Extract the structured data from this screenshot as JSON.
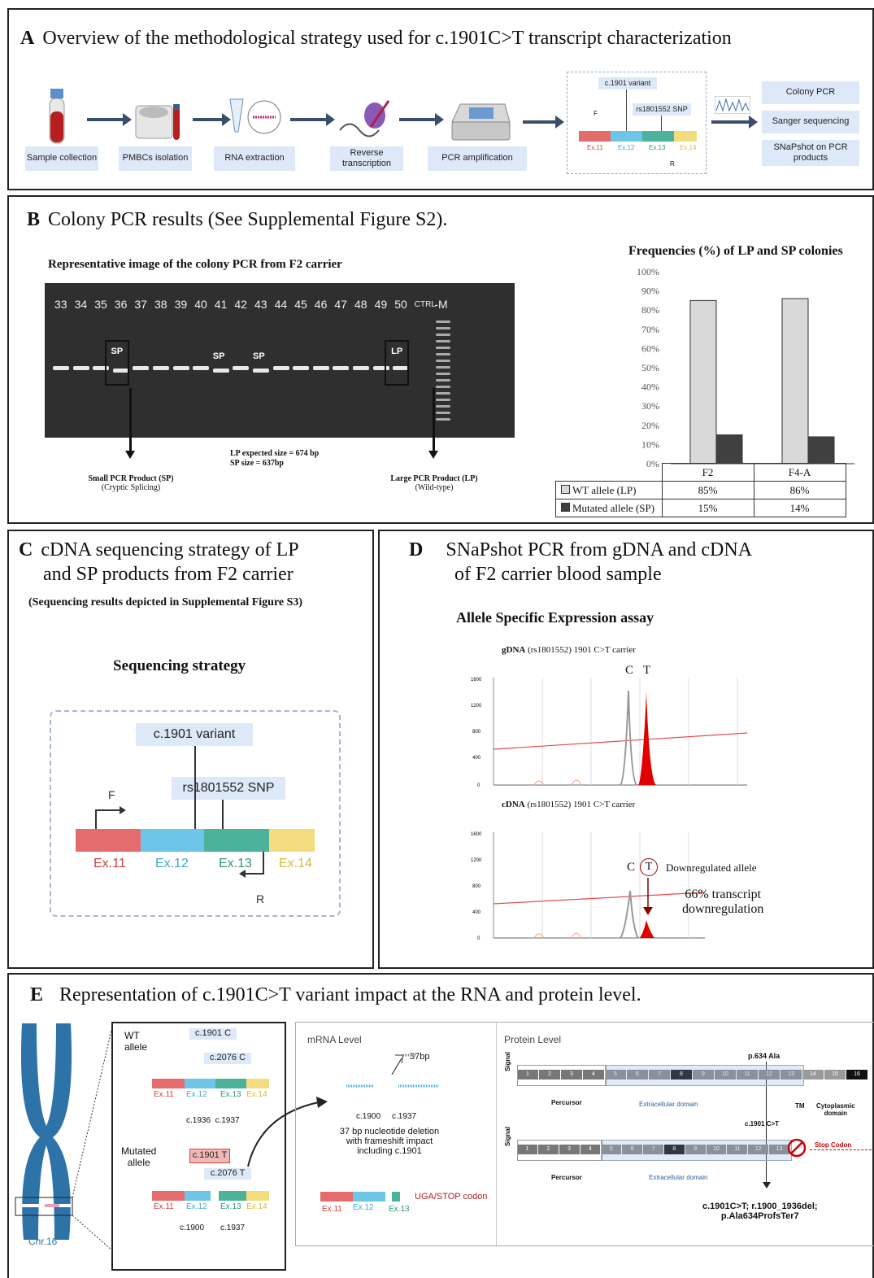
{
  "panelA": {
    "letter": "A",
    "title": "Overview of the methodological strategy used for c.1901C>T transcript characterization",
    "steps": [
      "Sample collection",
      "PMBCs isolation",
      "RNA extraction",
      "Reverse transcription",
      "PCR amplification"
    ],
    "diagram": {
      "variant": "c.1901 variant",
      "snp": "rs1801552 SNP",
      "F": "F",
      "R": "R",
      "exons": [
        "Ex.11",
        "Ex.12",
        "Ex.13",
        "Ex.14"
      ]
    },
    "outputs": [
      "Colony PCR",
      "Sanger sequencing",
      "SNaPshot on PCR products"
    ]
  },
  "panelB": {
    "letter": "B",
    "title": "Colony PCR results (See Supplemental Figure S2).",
    "gel_title": "Representative image of the colony PCR from F2 carrier",
    "lanes": [
      "33",
      "34",
      "35",
      "36",
      "37",
      "38",
      "39",
      "40",
      "41",
      "42",
      "43",
      "44",
      "45",
      "46",
      "47",
      "48",
      "49",
      "50",
      "CTRL",
      "M"
    ],
    "band_tags": [
      "SP",
      "SP",
      "SP",
      "LP"
    ],
    "sizes": [
      "LP expected size = 674 bp",
      "SP size = 637bp"
    ],
    "sp_label": [
      "Small PCR Product (SP)",
      "(Cryptic Splicing)"
    ],
    "lp_label": [
      "Large PCR Product (LP)",
      "(Wild-type)"
    ]
  },
  "chart_data": {
    "type": "bar",
    "title": "Frequencies (%) of LP and SP colonies",
    "categories": [
      "F2",
      "F4-A"
    ],
    "series": [
      {
        "name": "WT allele (LP)",
        "values": [
          85,
          86
        ],
        "labels": [
          "85%",
          "86%"
        ],
        "color": "#d9d9d9"
      },
      {
        "name": "Mutated allele (SP)",
        "values": [
          15,
          14
        ],
        "labels": [
          "15%",
          "14%"
        ],
        "color": "#404040"
      }
    ],
    "ylim": [
      0,
      100
    ],
    "yticks": [
      "0%",
      "10%",
      "20%",
      "30%",
      "40%",
      "50%",
      "60%",
      "70%",
      "80%",
      "90%",
      "100%"
    ],
    "grid": false,
    "legend": "table"
  },
  "panelC": {
    "letter": "C",
    "title_line1": "cDNA sequencing strategy of LP",
    "title_line2": "and SP products from F2 carrier",
    "subtitle": "(Sequencing results depicted in Supplemental Figure S3)",
    "strategy": "Sequencing strategy",
    "variant": "c.1901 variant",
    "snp": "rs1801552 SNP",
    "F": "F",
    "R": "R",
    "exons": [
      "Ex.11",
      "Ex.12",
      "Ex.13",
      "Ex.14"
    ]
  },
  "panelD": {
    "letter": "D",
    "title_line1": "SNaPshot PCR from gDNA and cDNA",
    "title_line2": "of F2 carrier blood sample",
    "subtitle": "Allele Specific Expression assay",
    "g_title_bold": "gDNA",
    "g_title_rest": " (rs1801552) 1901 C>T carrier",
    "c_title_bold": "cDNA",
    "c_title_rest": " (rs1801552) 1901 C>T carrier",
    "g_ticks": [
      "1600",
      "1200",
      "800",
      "400",
      "0"
    ],
    "c_ticks": [
      "1600",
      "1200",
      "800",
      "400",
      "0"
    ],
    "C": "C",
    "T": "T",
    "downregulated": "Downregulated allele",
    "transcript_line1": "66% transcript",
    "transcript_line2": "downregulation"
  },
  "panelE": {
    "letter": "E",
    "title": "Representation of c.1901C>T variant impact at the RNA and protein level.",
    "chr": "Chr.16",
    "wt_line1": "WT",
    "wt_line2": "allele",
    "mut_line1": "Mutated",
    "mut_line2": "allele",
    "wt_c1901": "c.1901 C",
    "wt_c2076": "c.2076 C",
    "wt_pos": "c.1936  c.1937",
    "mut_c1901": "c.1901 T",
    "mut_c2076": "c.2076 T",
    "mut_pos1": "c.1900",
    "mut_pos2": "c.1937",
    "exons": [
      "Ex.11",
      "Ex.12",
      "Ex.13",
      "Ex.14"
    ],
    "mrna_title": "mRNA Level",
    "bp37": "37bp",
    "mrna_pos1": "c.1900",
    "mrna_pos2": "c.1937",
    "deletion_text": [
      "37 bp nucleotide deletion",
      "with frameshift impact",
      "including c.1901"
    ],
    "mrna_exons": [
      "Ex.11",
      "Ex.12",
      "Ex.13"
    ],
    "stop": "UGA/STOP codon",
    "protein_title": "Protein Level",
    "p634": "p.634 Ala",
    "domains": [
      "1",
      "2",
      "3",
      "4",
      "5",
      "6",
      "7",
      "8",
      "9",
      "10",
      "11",
      "12",
      "13",
      "14",
      "15",
      "16"
    ],
    "signal": "Signal",
    "percursor": "Percursor",
    "extracellular": "Extracellular domain",
    "tm": "TM",
    "cyto_line1": "Cytoplasmic",
    "cyto_line2": "domain",
    "c1901": "c.1901 C>T",
    "stop_codon": "Stop Codon",
    "result_line1": "c.1901C>T; r.1900_1936del;",
    "result_line2": "p.Ala634ProfsTer7"
  }
}
